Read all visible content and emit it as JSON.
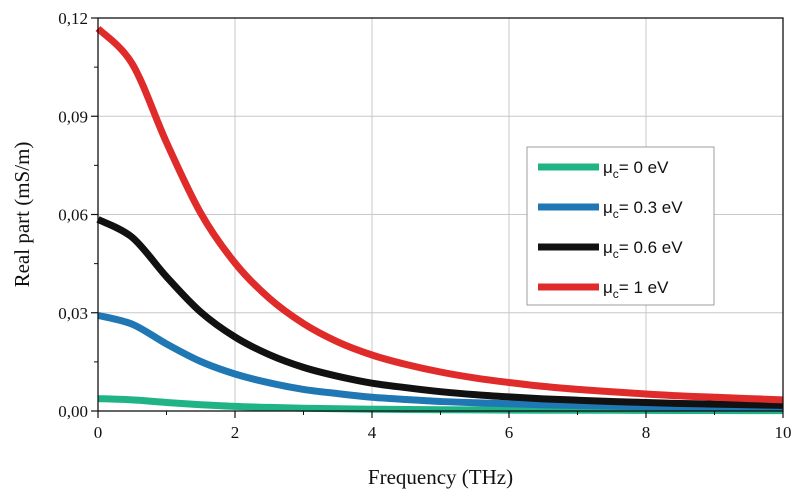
{
  "chart_data": {
    "type": "line",
    "xlabel": "Frequency (THz)",
    "ylabel": "Real part (mS/m)",
    "xlim": [
      0,
      10
    ],
    "ylim": [
      0,
      0.12
    ],
    "x_ticks": [
      0,
      2,
      4,
      6,
      8,
      10
    ],
    "x_tick_labels": [
      "0",
      "2",
      "4",
      "6",
      "8",
      "10"
    ],
    "y_ticks": [
      0,
      0.03,
      0.06,
      0.09,
      0.12
    ],
    "y_tick_labels": [
      "0,00",
      "0,03",
      "0,06",
      "0,09",
      "0,12"
    ],
    "grid": true,
    "legend_position": "right",
    "x": [
      0,
      0.5,
      1,
      1.5,
      2,
      2.5,
      3,
      3.5,
      4,
      4.5,
      5,
      5.5,
      6,
      6.5,
      7,
      7.5,
      8,
      8.5,
      9,
      9.5,
      10
    ],
    "series": [
      {
        "name_main": "μ",
        "name_sub": "c",
        "name_rest": "= 0 eV",
        "color": "#1fb386",
        "values": [
          0.0038,
          0.0034,
          0.0026,
          0.0019,
          0.0014,
          0.0011,
          0.00085,
          0.00068,
          0.00055,
          0.00046,
          0.00039,
          0.00033,
          0.00029,
          0.00025,
          0.00022,
          0.0002,
          0.00018,
          0.00016,
          0.00014,
          0.00013,
          0.00012
        ]
      },
      {
        "name_main": "μ",
        "name_sub": "c",
        "name_rest": "= 0.3 eV",
        "color": "#1f77b4",
        "values": [
          0.0292,
          0.0265,
          0.0205,
          0.0151,
          0.0113,
          0.0086,
          0.0066,
          0.0053,
          0.0042,
          0.0035,
          0.0029,
          0.0025,
          0.0022,
          0.0019,
          0.0017,
          0.0015,
          0.0013,
          0.0012,
          0.0011,
          0.001,
          0.0009
        ]
      },
      {
        "name_main": "μ",
        "name_sub": "c",
        "name_rest": "= 0.6 eV",
        "color": "#111111",
        "values": [
          0.0585,
          0.053,
          0.041,
          0.0302,
          0.0226,
          0.0172,
          0.0133,
          0.0106,
          0.0085,
          0.0071,
          0.0059,
          0.005,
          0.0043,
          0.0037,
          0.0033,
          0.0029,
          0.0026,
          0.0023,
          0.0021,
          0.0019,
          0.0017
        ]
      },
      {
        "name_main": "μ",
        "name_sub": "c",
        "name_rest": "= 1 eV",
        "color": "#e02b2b",
        "values": [
          0.1168,
          0.106,
          0.082,
          0.0604,
          0.0452,
          0.0344,
          0.0267,
          0.0211,
          0.0171,
          0.0142,
          0.0119,
          0.0101,
          0.0087,
          0.0075,
          0.0066,
          0.0059,
          0.0052,
          0.0046,
          0.0042,
          0.0038,
          0.0034
        ]
      }
    ]
  }
}
